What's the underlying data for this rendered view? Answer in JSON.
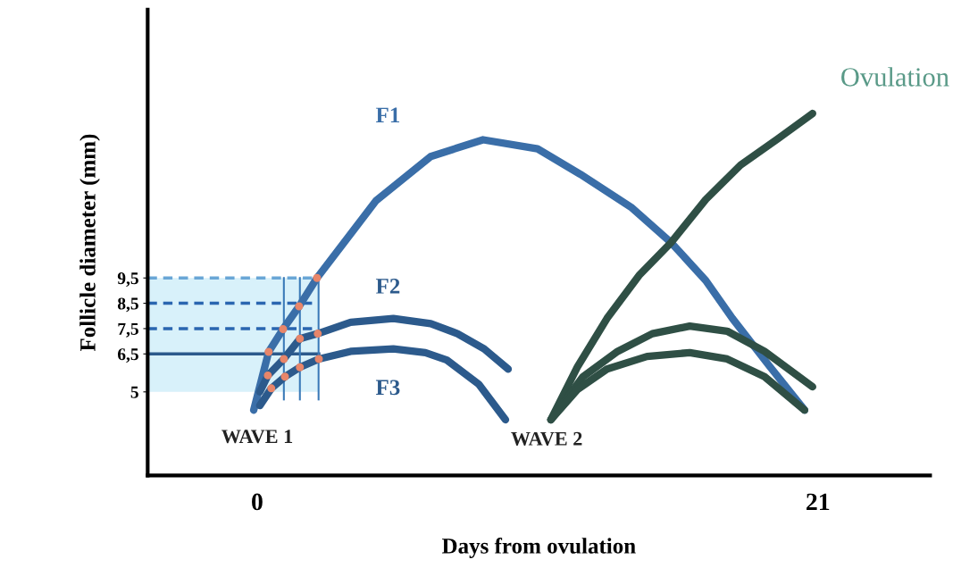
{
  "chart_data": {
    "type": "line",
    "xlabel": "Days from ovulation",
    "ylabel": "Follicle diameter (mm)",
    "xlim": [
      -4.1,
      25.2
    ],
    "ylim": [
      1.7,
      20.1
    ],
    "xticks": [
      0,
      21
    ],
    "yticks": [
      5,
      {
        "value": 6.5,
        "label": "6,5"
      },
      {
        "value": 7.5,
        "label": "7,5"
      },
      {
        "value": 8.5,
        "label": "8,5"
      },
      {
        "value": 9.5,
        "label": "9,5"
      }
    ],
    "grid": false,
    "legend": false,
    "marker": "none",
    "line_style": "solid",
    "series": [
      {
        "name": "F1",
        "color": "#3a6ea8",
        "x": [
          -0.13,
          0.43,
          0.97,
          1.57,
          2.24,
          4.45,
          6.5,
          8.46,
          10.5,
          12.1,
          14,
          15.5,
          16.8,
          17.8,
          19.2,
          20.5
        ],
        "values": [
          4.28,
          6.58,
          7.48,
          8.38,
          9.5,
          12.55,
          14.3,
          14.96,
          14.6,
          13.6,
          12.3,
          10.9,
          9.4,
          7.9,
          6.0,
          4.28
        ]
      },
      {
        "name": "F2",
        "color": "#2c5a8c",
        "x": [
          0.1,
          0.4,
          1.0,
          1.6,
          2.27,
          3.5,
          5.1,
          6.5,
          7.5,
          8.5,
          9.4
        ],
        "values": [
          5.0,
          5.65,
          6.3,
          7.1,
          7.3,
          7.75,
          7.9,
          7.7,
          7.3,
          6.7,
          5.9
        ]
      },
      {
        "name": "F3",
        "color": "#2c5a8c",
        "x": [
          0.1,
          0.53,
          1.04,
          1.6,
          2.31,
          3.5,
          5.1,
          6.3,
          7.1,
          8.3,
          9.3
        ],
        "values": [
          4.46,
          5.14,
          5.6,
          5.97,
          6.3,
          6.6,
          6.7,
          6.55,
          6.26,
          5.3,
          3.9
        ]
      },
      {
        "color": "#2f4f45",
        "x": [
          11,
          12,
          13.1,
          14.3,
          15.5,
          16.8,
          18.1,
          19.5,
          20.8
        ],
        "values": [
          3.9,
          6.0,
          7.9,
          9.6,
          10.9,
          12.6,
          13.96,
          15.0,
          16.0
        ]
      },
      {
        "color": "#2f4f45",
        "x": [
          11,
          12.2,
          13.5,
          14.8,
          16.2,
          17.6,
          19.0,
          20.8
        ],
        "values": [
          3.9,
          5.6,
          6.6,
          7.3,
          7.6,
          7.4,
          6.6,
          5.2
        ]
      },
      {
        "color": "#2f4f45",
        "x": [
          11,
          12,
          13.1,
          14.6,
          16.2,
          17.6,
          19.0,
          20.5
        ],
        "values": [
          3.9,
          5.1,
          5.9,
          6.4,
          6.55,
          6.3,
          5.6,
          4.28
        ]
      },
      {
        "type": "scatter",
        "color": "#e8866a",
        "marker": "circle",
        "x": [
          0.43,
          0.97,
          1.57,
          2.24,
          0.4,
          1.0,
          1.6,
          2.27,
          0.53,
          1.04,
          1.6,
          2.31
        ],
        "values": [
          6.58,
          7.48,
          8.38,
          9.5,
          5.65,
          6.3,
          7.1,
          7.3,
          5.14,
          5.6,
          5.97,
          6.3
        ]
      }
    ],
    "ref_lines": [
      {
        "axis": "y",
        "value": 9.5,
        "color": "#6aa6d6",
        "line_style": "dashed"
      },
      {
        "axis": "y",
        "value": 8.5,
        "color": "#2a66b0",
        "line_style": "dashed"
      },
      {
        "axis": "y",
        "value": 7.5,
        "color": "#2a66b0",
        "line_style": "dashed"
      },
      {
        "axis": "y",
        "value": 6.5,
        "color": "#2c5a8c",
        "line_style": "solid"
      },
      {
        "axis": "x",
        "value": 1.0,
        "color": "#3a7ab8",
        "line_style": "solid"
      },
      {
        "axis": "x",
        "value": 1.6,
        "color": "#3a7ab8",
        "line_style": "solid"
      },
      {
        "axis": "x",
        "value": 2.3,
        "color": "#3a7ab8",
        "line_style": "solid"
      }
    ],
    "bands": [
      {
        "axis": "y",
        "from": 5,
        "to": 9.5,
        "color": "#d8f1fa"
      }
    ],
    "annotations": [
      "WAVE 1",
      "WAVE 2",
      "Ovulation"
    ]
  }
}
